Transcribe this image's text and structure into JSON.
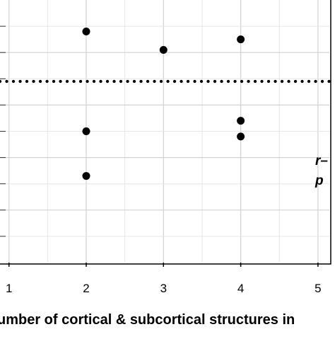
{
  "chart_data": {
    "type": "scatter",
    "xlabel": "umber of cortical & subcortical structures in",
    "ylabel": "",
    "xlim": [
      0.3,
      5.25
    ],
    "ylim": [
      0,
      10
    ],
    "x_ticks": [
      1,
      2,
      3,
      4,
      5
    ],
    "x_tick_labels": [
      "1",
      "2",
      "3",
      "4",
      "5"
    ],
    "grid": true,
    "points": [
      {
        "x": 2,
        "y": 8.8
      },
      {
        "x": 3,
        "y": 8.1
      },
      {
        "x": 4,
        "y": 8.5
      },
      {
        "x": 2,
        "y": 5.0
      },
      {
        "x": 4,
        "y": 5.4
      },
      {
        "x": 4,
        "y": 4.8
      },
      {
        "x": 2,
        "y": 3.3
      }
    ],
    "reference_line": {
      "y": 6.9,
      "style": "dotted"
    },
    "annotation_lines": [
      "r–",
      "p"
    ]
  }
}
